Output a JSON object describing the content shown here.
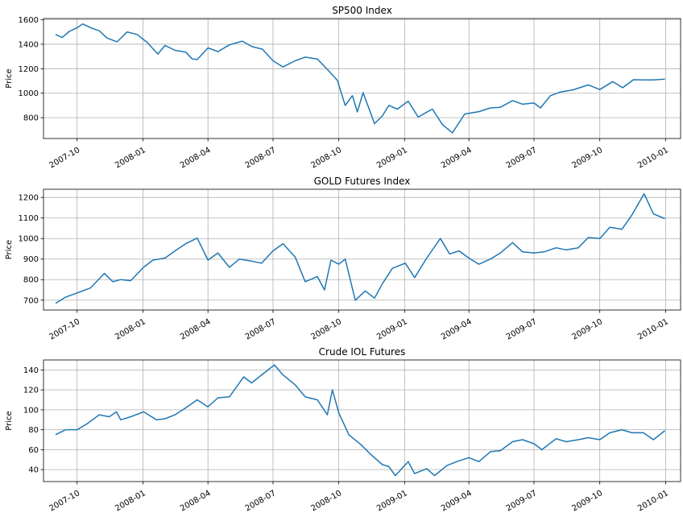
{
  "chart_data": [
    {
      "type": "line",
      "title": "SP500 Index",
      "xlabel": "",
      "ylabel": "Price",
      "grid": true,
      "legend": "none",
      "xlim": [
        "2007-08-15",
        "2010-01-22"
      ],
      "ylim": [
        630,
        1610
      ],
      "yticks": [
        800,
        1000,
        1200,
        1400,
        1600
      ],
      "xticks": [
        "2007-10",
        "2008-01",
        "2008-04",
        "2008-07",
        "2008-10",
        "2009-01",
        "2009-04",
        "2009-07",
        "2009-10",
        "2010-01"
      ],
      "series": [
        {
          "color": "#1f77b4",
          "points": [
            [
              "2007-09-01",
              1480
            ],
            [
              "2007-09-10",
              1455
            ],
            [
              "2007-09-20",
              1505
            ],
            [
              "2007-10-01",
              1535
            ],
            [
              "2007-10-09",
              1565
            ],
            [
              "2007-10-22",
              1530
            ],
            [
              "2007-11-01",
              1510
            ],
            [
              "2007-11-12",
              1450
            ],
            [
              "2007-11-26",
              1420
            ],
            [
              "2007-12-10",
              1500
            ],
            [
              "2007-12-24",
              1480
            ],
            [
              "2008-01-07",
              1415
            ],
            [
              "2008-01-22",
              1320
            ],
            [
              "2008-02-01",
              1390
            ],
            [
              "2008-02-15",
              1350
            ],
            [
              "2008-03-01",
              1335
            ],
            [
              "2008-03-10",
              1280
            ],
            [
              "2008-03-17",
              1275
            ],
            [
              "2008-04-01",
              1370
            ],
            [
              "2008-04-15",
              1340
            ],
            [
              "2008-05-01",
              1395
            ],
            [
              "2008-05-19",
              1425
            ],
            [
              "2008-06-02",
              1380
            ],
            [
              "2008-06-16",
              1360
            ],
            [
              "2008-07-01",
              1265
            ],
            [
              "2008-07-15",
              1215
            ],
            [
              "2008-08-01",
              1265
            ],
            [
              "2008-08-15",
              1295
            ],
            [
              "2008-09-01",
              1280
            ],
            [
              "2008-09-15",
              1195
            ],
            [
              "2008-09-29",
              1105
            ],
            [
              "2008-10-10",
              900
            ],
            [
              "2008-10-20",
              980
            ],
            [
              "2008-10-27",
              848
            ],
            [
              "2008-11-04",
              1005
            ],
            [
              "2008-11-20",
              752
            ],
            [
              "2008-12-01",
              815
            ],
            [
              "2008-12-10",
              900
            ],
            [
              "2008-12-22",
              870
            ],
            [
              "2009-01-06",
              935
            ],
            [
              "2009-01-20",
              805
            ],
            [
              "2009-02-01",
              845
            ],
            [
              "2009-02-09",
              870
            ],
            [
              "2009-02-23",
              743
            ],
            [
              "2009-03-09",
              677
            ],
            [
              "2009-03-26",
              830
            ],
            [
              "2009-04-15",
              850
            ],
            [
              "2009-05-01",
              880
            ],
            [
              "2009-05-15",
              885
            ],
            [
              "2009-06-01",
              940
            ],
            [
              "2009-06-15",
              910
            ],
            [
              "2009-07-01",
              920
            ],
            [
              "2009-07-10",
              880
            ],
            [
              "2009-07-24",
              980
            ],
            [
              "2009-08-07",
              1010
            ],
            [
              "2009-08-25",
              1028
            ],
            [
              "2009-09-15",
              1068
            ],
            [
              "2009-10-01",
              1030
            ],
            [
              "2009-10-19",
              1095
            ],
            [
              "2009-11-02",
              1045
            ],
            [
              "2009-11-17",
              1110
            ],
            [
              "2009-12-01",
              1108
            ],
            [
              "2009-12-15",
              1108
            ],
            [
              "2009-12-31",
              1115
            ]
          ]
        }
      ]
    },
    {
      "type": "line",
      "title": "GOLD Futures Index",
      "xlabel": "",
      "ylabel": "Price",
      "grid": true,
      "legend": "none",
      "xlim": [
        "2007-08-15",
        "2010-01-22"
      ],
      "ylim": [
        652,
        1240
      ],
      "yticks": [
        700,
        800,
        900,
        1000,
        1100,
        1200
      ],
      "xticks": [
        "2007-10",
        "2008-01",
        "2008-04",
        "2008-07",
        "2008-10",
        "2009-01",
        "2009-04",
        "2009-07",
        "2009-10",
        "2010-01"
      ],
      "series": [
        {
          "color": "#1f77b4",
          "points": [
            [
              "2007-09-01",
              685
            ],
            [
              "2007-09-15",
              715
            ],
            [
              "2007-10-01",
              735
            ],
            [
              "2007-10-20",
              760
            ],
            [
              "2007-11-08",
              830
            ],
            [
              "2007-11-20",
              790
            ],
            [
              "2007-12-01",
              800
            ],
            [
              "2007-12-15",
              795
            ],
            [
              "2008-01-02",
              860
            ],
            [
              "2008-01-15",
              895
            ],
            [
              "2008-02-01",
              905
            ],
            [
              "2008-02-15",
              940
            ],
            [
              "2008-03-01",
              975
            ],
            [
              "2008-03-17",
              1002
            ],
            [
              "2008-04-01",
              895
            ],
            [
              "2008-04-15",
              930
            ],
            [
              "2008-05-01",
              860
            ],
            [
              "2008-05-15",
              900
            ],
            [
              "2008-06-01",
              890
            ],
            [
              "2008-06-15",
              880
            ],
            [
              "2008-07-01",
              940
            ],
            [
              "2008-07-15",
              975
            ],
            [
              "2008-08-01",
              910
            ],
            [
              "2008-08-15",
              790
            ],
            [
              "2008-09-01",
              815
            ],
            [
              "2008-09-11",
              750
            ],
            [
              "2008-09-20",
              895
            ],
            [
              "2008-10-01",
              875
            ],
            [
              "2008-10-10",
              900
            ],
            [
              "2008-10-24",
              700
            ],
            [
              "2008-11-07",
              745
            ],
            [
              "2008-11-20",
              710
            ],
            [
              "2008-12-01",
              780
            ],
            [
              "2008-12-15",
              855
            ],
            [
              "2009-01-02",
              880
            ],
            [
              "2009-01-15",
              810
            ],
            [
              "2009-02-01",
              905
            ],
            [
              "2009-02-20",
              1000
            ],
            [
              "2009-03-05",
              925
            ],
            [
              "2009-03-18",
              940
            ],
            [
              "2009-04-01",
              905
            ],
            [
              "2009-04-15",
              875
            ],
            [
              "2009-05-01",
              900
            ],
            [
              "2009-05-15",
              930
            ],
            [
              "2009-06-01",
              980
            ],
            [
              "2009-06-15",
              935
            ],
            [
              "2009-07-01",
              930
            ],
            [
              "2009-07-15",
              935
            ],
            [
              "2009-08-01",
              955
            ],
            [
              "2009-08-15",
              945
            ],
            [
              "2009-09-01",
              955
            ],
            [
              "2009-09-15",
              1005
            ],
            [
              "2009-10-01",
              1000
            ],
            [
              "2009-10-15",
              1055
            ],
            [
              "2009-11-01",
              1045
            ],
            [
              "2009-11-15",
              1115
            ],
            [
              "2009-12-02",
              1218
            ],
            [
              "2009-12-15",
              1120
            ],
            [
              "2009-12-31",
              1097
            ]
          ]
        }
      ]
    },
    {
      "type": "line",
      "title": "Crude IOL Futures",
      "xlabel": "",
      "ylabel": "Price",
      "grid": true,
      "legend": "none",
      "xlim": [
        "2007-08-15",
        "2010-01-22"
      ],
      "ylim": [
        28,
        150
      ],
      "yticks": [
        40,
        60,
        80,
        100,
        120,
        140
      ],
      "xticks": [
        "2007-10",
        "2008-01",
        "2008-04",
        "2008-07",
        "2008-10",
        "2009-01",
        "2009-04",
        "2009-07",
        "2009-10",
        "2010-01"
      ],
      "series": [
        {
          "color": "#1f77b4",
          "points": [
            [
              "2007-09-01",
              75
            ],
            [
              "2007-09-15",
              80
            ],
            [
              "2007-10-01",
              80
            ],
            [
              "2007-10-15",
              86
            ],
            [
              "2007-11-01",
              95
            ],
            [
              "2007-11-15",
              93
            ],
            [
              "2007-11-25",
              98
            ],
            [
              "2007-12-01",
              90
            ],
            [
              "2007-12-15",
              93
            ],
            [
              "2008-01-02",
              98
            ],
            [
              "2008-01-20",
              90
            ],
            [
              "2008-02-01",
              91
            ],
            [
              "2008-02-15",
              95
            ],
            [
              "2008-03-01",
              102
            ],
            [
              "2008-03-17",
              110
            ],
            [
              "2008-04-01",
              103
            ],
            [
              "2008-04-15",
              112
            ],
            [
              "2008-05-01",
              113
            ],
            [
              "2008-05-21",
              133
            ],
            [
              "2008-06-01",
              127
            ],
            [
              "2008-06-15",
              135
            ],
            [
              "2008-07-03",
              145
            ],
            [
              "2008-07-15",
              135
            ],
            [
              "2008-08-01",
              125
            ],
            [
              "2008-08-15",
              113
            ],
            [
              "2008-09-01",
              110
            ],
            [
              "2008-09-15",
              95
            ],
            [
              "2008-09-22",
              120
            ],
            [
              "2008-10-01",
              97
            ],
            [
              "2008-10-15",
              75
            ],
            [
              "2008-11-01",
              65
            ],
            [
              "2008-11-15",
              55
            ],
            [
              "2008-12-01",
              45
            ],
            [
              "2008-12-10",
              43
            ],
            [
              "2008-12-19",
              34
            ],
            [
              "2009-01-06",
              48
            ],
            [
              "2009-01-15",
              36
            ],
            [
              "2009-02-01",
              41
            ],
            [
              "2009-02-12",
              34
            ],
            [
              "2009-03-01",
              44
            ],
            [
              "2009-03-15",
              48
            ],
            [
              "2009-04-01",
              52
            ],
            [
              "2009-04-15",
              48
            ],
            [
              "2009-05-01",
              58
            ],
            [
              "2009-05-15",
              59
            ],
            [
              "2009-06-01",
              68
            ],
            [
              "2009-06-15",
              70
            ],
            [
              "2009-07-01",
              66
            ],
            [
              "2009-07-12",
              60
            ],
            [
              "2009-08-01",
              71
            ],
            [
              "2009-08-15",
              68
            ],
            [
              "2009-09-01",
              70
            ],
            [
              "2009-09-15",
              72
            ],
            [
              "2009-10-01",
              70
            ],
            [
              "2009-10-15",
              77
            ],
            [
              "2009-11-01",
              80
            ],
            [
              "2009-11-15",
              77
            ],
            [
              "2009-12-01",
              77
            ],
            [
              "2009-12-15",
              70
            ],
            [
              "2009-12-31",
              79
            ]
          ]
        }
      ]
    }
  ]
}
